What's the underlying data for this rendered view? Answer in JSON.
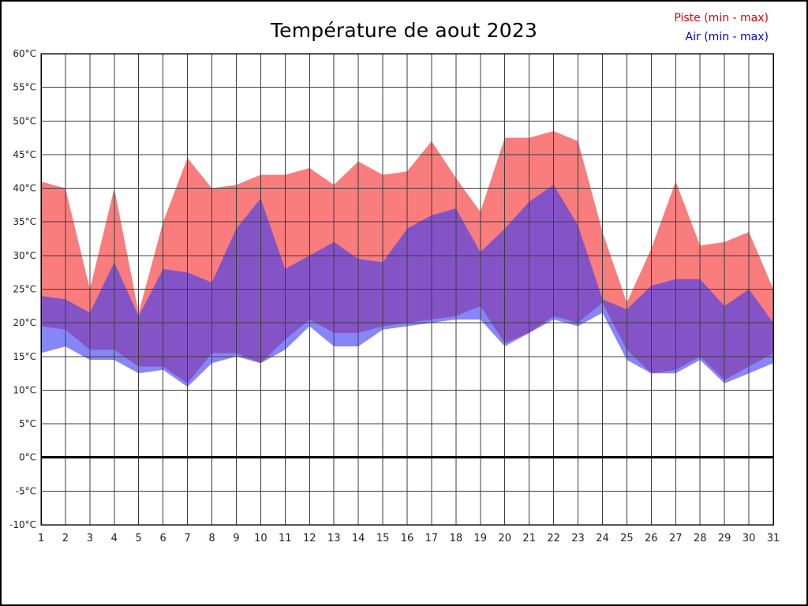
{
  "legend": {
    "piste_label": "Piste (min - max)",
    "air_label": "Air (min - max)",
    "piste_color": "#dd0000",
    "air_color": "#0000dd"
  },
  "chart_data": {
    "type": "area",
    "title": "Température de aout 2023",
    "xlabel": "",
    "ylabel": "",
    "xlim": [
      1,
      31
    ],
    "ylim": [
      -10,
      60
    ],
    "ytick_step": 5,
    "unit": "°C",
    "grid": true,
    "legend_position": "top-right",
    "zero_line": {
      "value": 0,
      "color": "#000000",
      "width": 3
    },
    "categories": [
      1,
      2,
      3,
      4,
      5,
      6,
      7,
      8,
      9,
      10,
      11,
      12,
      13,
      14,
      15,
      16,
      17,
      18,
      19,
      20,
      21,
      22,
      23,
      24,
      25,
      26,
      27,
      28,
      29,
      30,
      31
    ],
    "series": [
      {
        "name": "Piste (min - max)",
        "fill": "#f97d7d",
        "max": [
          41,
          40,
          25,
          40,
          21.5,
          35,
          44.5,
          40,
          40.5,
          42,
          42,
          43,
          40.5,
          44,
          42,
          42.5,
          47,
          41.5,
          36.5,
          47.5,
          47.5,
          48.5,
          47,
          33.5,
          23,
          31,
          41,
          31.5,
          32,
          33.5,
          25
        ],
        "min": [
          19.5,
          19,
          16,
          16,
          13.5,
          13.5,
          11,
          15.5,
          15.5,
          14,
          17.5,
          20.5,
          18.5,
          18.5,
          19.5,
          20,
          20.5,
          21,
          22.5,
          17,
          18.5,
          21,
          20,
          23,
          16,
          12.5,
          13,
          15,
          11.5,
          13.5,
          15.5
        ]
      },
      {
        "name": "Air (min - max)",
        "fill": "rgba(60,60,245,0.62)",
        "max": [
          24,
          23.5,
          21.5,
          29,
          21,
          28,
          27.5,
          26,
          34,
          38.5,
          28,
          30,
          32,
          29.5,
          29,
          34,
          36,
          37,
          30.5,
          34,
          38,
          40.5,
          34.5,
          23.5,
          22,
          25.5,
          26.5,
          26.5,
          22.5,
          25,
          20
        ],
        "min": [
          15.5,
          16.5,
          14.5,
          14.5,
          12.5,
          13,
          10.5,
          14,
          15,
          14,
          16,
          19.5,
          16.5,
          16.5,
          19,
          19.5,
          20,
          20.5,
          20.5,
          16.5,
          18.5,
          20.5,
          19.5,
          21.5,
          14.5,
          12.5,
          12.5,
          14.5,
          11,
          12.5,
          14
        ]
      }
    ],
    "plot_colors": {
      "grid": "#3c3c3c",
      "border": "#000000",
      "background": "#ffffff"
    }
  }
}
